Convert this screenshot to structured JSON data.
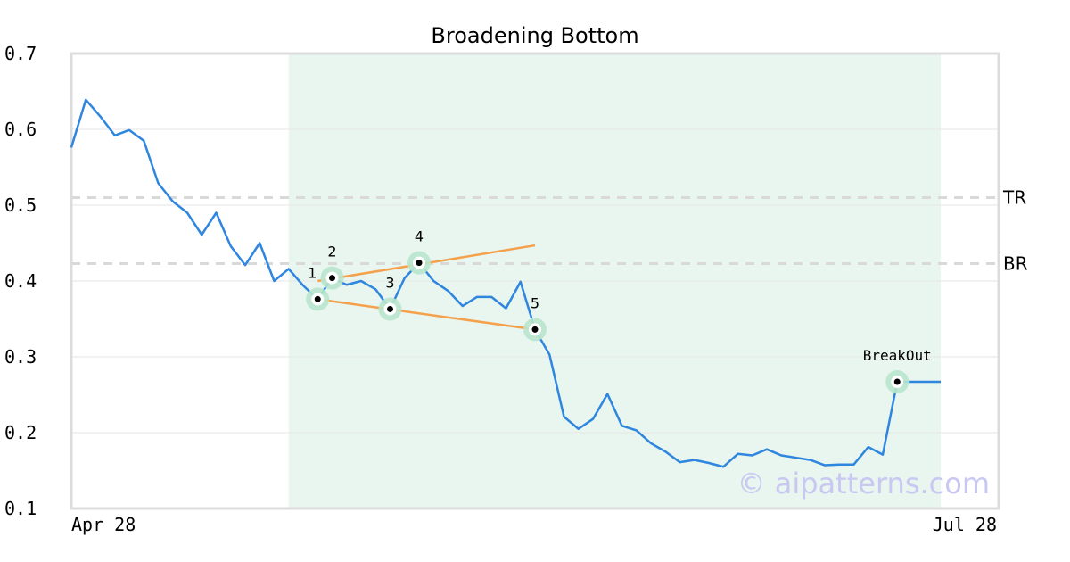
{
  "chart_data": {
    "type": "line",
    "title": "Broadening Bottom",
    "ylim": [
      0.1,
      0.7
    ],
    "y_ticks": [
      "0.7",
      "0.6",
      "0.5",
      "0.4",
      "0.3",
      "0.2",
      "0.1"
    ],
    "x_tick_labels": [
      "Apr 28",
      "Jul 28"
    ],
    "grid": "horizontal",
    "colors": {
      "line": "#2e86de",
      "trend": "#f5a04a",
      "highlight": "#e9f5ef",
      "marker_halo": "#b8e6cc",
      "level": "#d9d9d9"
    },
    "series": [
      {
        "values": [
          0.576,
          0.639,
          0.617,
          0.592,
          0.599,
          0.585,
          0.529,
          0.505,
          0.49,
          0.461,
          0.49,
          0.446,
          0.421,
          0.45,
          0.4,
          0.416,
          0.394,
          0.376,
          0.404,
          0.395,
          0.4,
          0.389,
          0.363,
          0.404,
          0.424,
          0.4,
          0.387,
          0.367,
          0.379,
          0.379,
          0.364,
          0.399,
          0.336,
          0.303,
          0.221,
          0.205,
          0.218,
          0.251,
          0.209,
          0.203,
          0.186,
          0.175,
          0.161,
          0.164,
          0.16,
          0.155,
          0.172,
          0.17,
          0.178,
          0.17,
          0.167,
          0.164,
          0.157,
          0.158,
          0.158,
          0.181,
          0.171,
          0.267,
          0.267,
          0.267,
          0.267
        ]
      }
    ],
    "levels": [
      {
        "label": "TR",
        "value": 0.51
      },
      {
        "label": "BR",
        "value": 0.423
      }
    ],
    "pattern_points": [
      {
        "label": "1",
        "index": 17,
        "value": 0.376
      },
      {
        "label": "2",
        "index": 18,
        "value": 0.404
      },
      {
        "label": "3",
        "index": 22,
        "value": 0.363
      },
      {
        "label": "4",
        "index": 24,
        "value": 0.424
      },
      {
        "label": "5",
        "index": 32,
        "value": 0.336
      },
      {
        "label": "BreakOut",
        "index": 57,
        "value": 0.267
      }
    ],
    "trendlines": [
      {
        "from": {
          "index": 17,
          "value": 0.4
        },
        "to": {
          "index": 32,
          "value": 0.447
        }
      },
      {
        "from": {
          "index": 17,
          "value": 0.376
        },
        "to": {
          "index": 32,
          "value": 0.336
        }
      }
    ],
    "highlight_range": {
      "start_index": 15,
      "end_index": 60
    },
    "watermark": "© aipatterns.com"
  }
}
